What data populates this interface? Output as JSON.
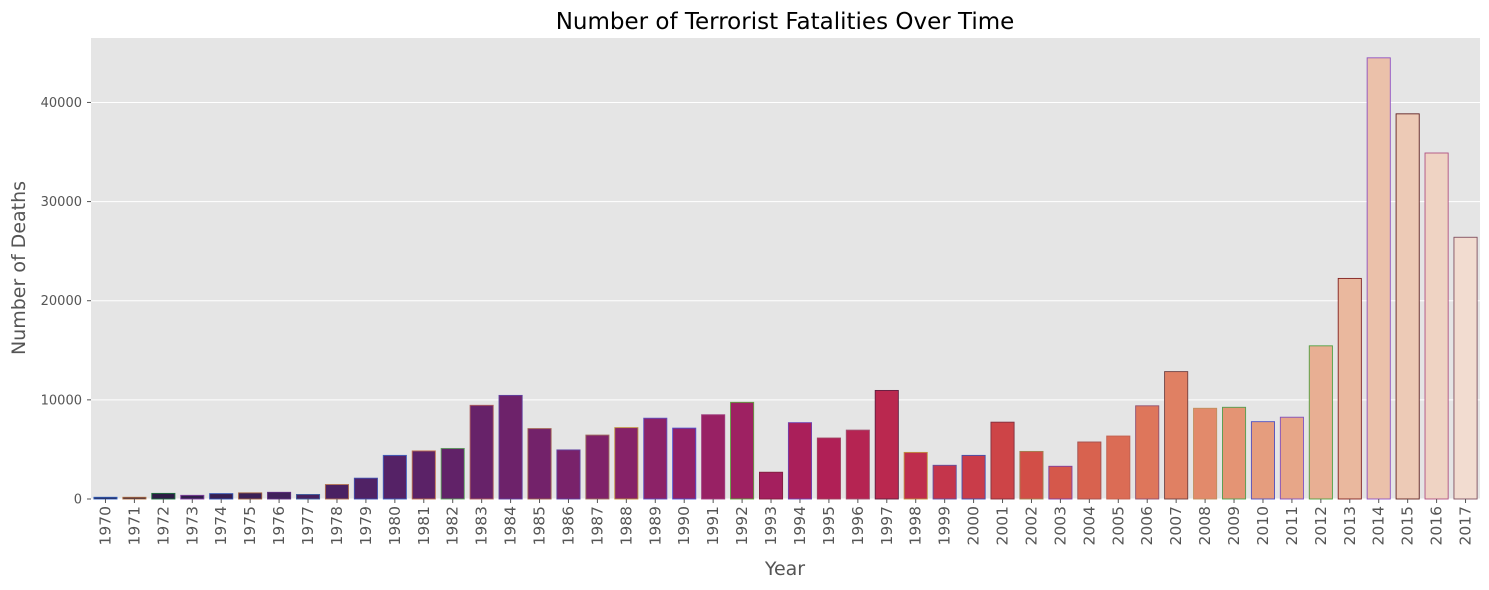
{
  "chart_data": {
    "type": "bar",
    "title": "Number of Terrorist Fatalities Over Time",
    "xlabel": "Year",
    "ylabel": "Number of Deaths",
    "ylim": [
      0,
      46500
    ],
    "yticks": [
      0,
      10000,
      20000,
      30000,
      40000
    ],
    "grid": "horizontal",
    "background": "#e5e5e5",
    "categories": [
      "1970",
      "1971",
      "1972",
      "1973",
      "1974",
      "1975",
      "1976",
      "1977",
      "1978",
      "1979",
      "1980",
      "1981",
      "1982",
      "1983",
      "1984",
      "1985",
      "1986",
      "1987",
      "1988",
      "1989",
      "1990",
      "1991",
      "1992",
      "1993",
      "1994",
      "1995",
      "1996",
      "1997",
      "1998",
      "1999",
      "2000",
      "2001",
      "2002",
      "2003",
      "2004",
      "2005",
      "2006",
      "2007",
      "2008",
      "2009",
      "2010",
      "2011",
      "2012",
      "2013",
      "2014",
      "2015",
      "2016",
      "2017"
    ],
    "values": [
      174,
      173,
      566,
      370,
      539,
      617,
      674,
      456,
      1459,
      2100,
      4400,
      4850,
      5100,
      9450,
      10450,
      7100,
      4950,
      6450,
      7200,
      8150,
      7150,
      8500,
      9750,
      2700,
      7700,
      6150,
      6950,
      10950,
      4700,
      3400,
      4400,
      7750,
      4800,
      3300,
      5750,
      6350,
      9400,
      12850,
      9150,
      9250,
      7800,
      8250,
      15450,
      22250,
      44500,
      38850,
      34900,
      26400
    ],
    "bar_colors": [
      "#221636",
      "#271a3e",
      "#2c1c44",
      "#311e4b",
      "#361f51",
      "#3b2056",
      "#40215b",
      "#45215f",
      "#4a2162",
      "#502265",
      "#552266",
      "#5b2267",
      "#612268",
      "#672269",
      "#6d226a",
      "#73226a",
      "#79226a",
      "#7f2269",
      "#862268",
      "#8c2267",
      "#922166",
      "#982164",
      "#9e2162",
      "#a41f5e",
      "#aa1f5a",
      "#b02056",
      "#b52452",
      "#ba284f",
      "#bf2e4d",
      "#c4354b",
      "#c93c49",
      "#cd4447",
      "#d24e47",
      "#d5584b",
      "#d8624f",
      "#db6c55",
      "#de765b",
      "#e08063",
      "#e28a6b",
      "#e49474",
      "#e59d7e",
      "#e7a688",
      "#e8af93",
      "#eab89e",
      "#ebc1aa",
      "#edcab6",
      "#efd3c3",
      "#f2dcd0"
    ],
    "edge_colors": [
      "#3060c0",
      "#b07040",
      "#207040",
      "#8040a0",
      "#3050b0",
      "#a06040",
      "#603080",
      "#4060a0",
      "#b07050",
      "#4050b0",
      "#4060c0",
      "#c07050",
      "#60a060",
      "#b06060",
      "#6040a0",
      "#a06050",
      "#6040a0",
      "#a07060",
      "#c09040",
      "#6050c0",
      "#5050d0",
      "#a04080",
      "#60a040",
      "#802040",
      "#7040b0",
      "#a04060",
      "#a05070",
      "#602040",
      "#c09040",
      "#6050a0",
      "#4050b0",
      "#803040",
      "#a08050",
      "#8040a0",
      "#a05050",
      "#c06050",
      "#905070",
      "#704040",
      "#c09060",
      "#50a050",
      "#5050c0",
      "#8050c0",
      "#50a040",
      "#802020",
      "#9050c0",
      "#602020",
      "#b05080",
      "#805060"
    ]
  }
}
